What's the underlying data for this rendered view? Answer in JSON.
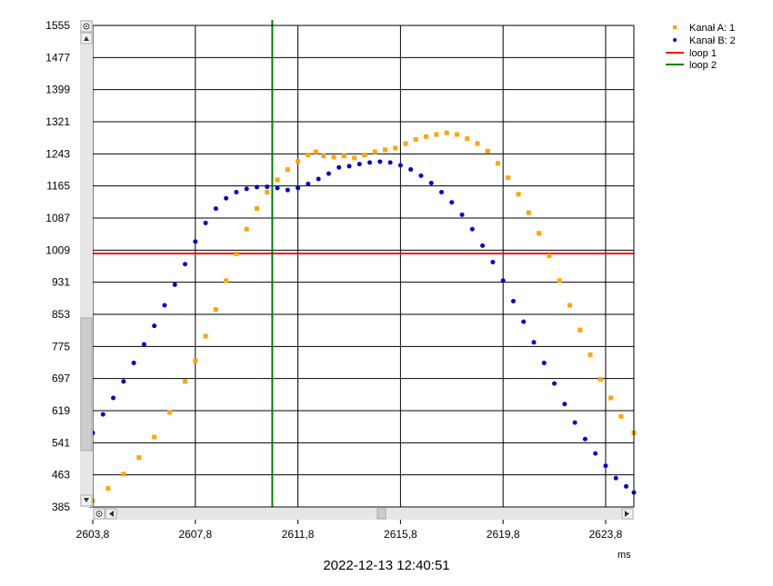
{
  "chart_data": {
    "type": "scatter",
    "xlabel": "ms",
    "timestamp": "2022-12-13 12:40:51",
    "xlim": [
      2603.8,
      2624.9
    ],
    "ylim": [
      385,
      1555
    ],
    "x_ticks": [
      "2603,8",
      "2607,8",
      "2611,8",
      "2615,8",
      "2619,8",
      "2623,8"
    ],
    "x_tick_values": [
      2603.8,
      2607.8,
      2611.8,
      2615.8,
      2619.8,
      2623.8
    ],
    "y_ticks": [
      "385",
      "463",
      "541",
      "619",
      "697",
      "775",
      "853",
      "931",
      "1009",
      "1087",
      "1165",
      "1243",
      "1321",
      "1399",
      "1477",
      "1555"
    ],
    "y_tick_values": [
      385,
      463,
      541,
      619,
      697,
      775,
      853,
      931,
      1009,
      1087,
      1165,
      1243,
      1321,
      1399,
      1477,
      1555
    ],
    "grid": true,
    "legend_position": "top-right",
    "colors": {
      "kanal_a": "#FFA500",
      "kanal_b": "#0000CD",
      "loop_1": "#FF0000",
      "loop_2": "#008000"
    },
    "series": [
      {
        "name": "Kanał A: 1",
        "marker": "square",
        "color": "#FFA500",
        "points": [
          [
            2603.8,
            400
          ],
          [
            2604.4,
            430
          ],
          [
            2605.0,
            465
          ],
          [
            2605.6,
            505
          ],
          [
            2606.2,
            555
          ],
          [
            2606.8,
            615
          ],
          [
            2607.4,
            690
          ],
          [
            2607.8,
            740
          ],
          [
            2608.2,
            800
          ],
          [
            2608.6,
            865
          ],
          [
            2609.0,
            935
          ],
          [
            2609.4,
            1000
          ],
          [
            2609.8,
            1060
          ],
          [
            2610.2,
            1110
          ],
          [
            2610.6,
            1150
          ],
          [
            2611.0,
            1180
          ],
          [
            2611.4,
            1205
          ],
          [
            2611.8,
            1225
          ],
          [
            2612.2,
            1240
          ],
          [
            2612.5,
            1248
          ],
          [
            2612.8,
            1238
          ],
          [
            2613.2,
            1235
          ],
          [
            2613.6,
            1238
          ],
          [
            2614.0,
            1233
          ],
          [
            2614.4,
            1240
          ],
          [
            2614.8,
            1248
          ],
          [
            2615.2,
            1253
          ],
          [
            2615.6,
            1257
          ],
          [
            2616.0,
            1268
          ],
          [
            2616.4,
            1278
          ],
          [
            2616.8,
            1285
          ],
          [
            2617.2,
            1290
          ],
          [
            2617.6,
            1294
          ],
          [
            2618.0,
            1290
          ],
          [
            2618.4,
            1280
          ],
          [
            2618.8,
            1268
          ],
          [
            2619.2,
            1250
          ],
          [
            2619.6,
            1220
          ],
          [
            2620.0,
            1185
          ],
          [
            2620.4,
            1145
          ],
          [
            2620.8,
            1100
          ],
          [
            2621.2,
            1050
          ],
          [
            2621.6,
            995
          ],
          [
            2622.0,
            935
          ],
          [
            2622.4,
            875
          ],
          [
            2622.8,
            815
          ],
          [
            2623.2,
            755
          ],
          [
            2623.6,
            695
          ],
          [
            2624.0,
            650
          ],
          [
            2624.4,
            605
          ],
          [
            2624.9,
            565
          ]
        ]
      },
      {
        "name": "Kanał B: 2",
        "marker": "circle",
        "color": "#0000CD",
        "points": [
          [
            2603.8,
            565
          ],
          [
            2604.2,
            610
          ],
          [
            2604.6,
            650
          ],
          [
            2605.0,
            690
          ],
          [
            2605.4,
            735
          ],
          [
            2605.8,
            780
          ],
          [
            2606.2,
            825
          ],
          [
            2606.6,
            875
          ],
          [
            2607.0,
            925
          ],
          [
            2607.4,
            975
          ],
          [
            2607.8,
            1030
          ],
          [
            2608.2,
            1075
          ],
          [
            2608.6,
            1110
          ],
          [
            2609.0,
            1135
          ],
          [
            2609.4,
            1150
          ],
          [
            2609.8,
            1158
          ],
          [
            2610.2,
            1162
          ],
          [
            2610.6,
            1163
          ],
          [
            2611.0,
            1160
          ],
          [
            2611.4,
            1155
          ],
          [
            2611.8,
            1160
          ],
          [
            2612.2,
            1170
          ],
          [
            2612.6,
            1182
          ],
          [
            2613.0,
            1195
          ],
          [
            2613.4,
            1210
          ],
          [
            2613.8,
            1213
          ],
          [
            2614.2,
            1218
          ],
          [
            2614.6,
            1222
          ],
          [
            2615.0,
            1224
          ],
          [
            2615.4,
            1222
          ],
          [
            2615.8,
            1215
          ],
          [
            2616.2,
            1205
          ],
          [
            2616.6,
            1190
          ],
          [
            2617.0,
            1172
          ],
          [
            2617.4,
            1150
          ],
          [
            2617.8,
            1125
          ],
          [
            2618.2,
            1095
          ],
          [
            2618.6,
            1060
          ],
          [
            2619.0,
            1020
          ],
          [
            2619.4,
            980
          ],
          [
            2619.8,
            935
          ],
          [
            2620.2,
            885
          ],
          [
            2620.6,
            835
          ],
          [
            2621.0,
            785
          ],
          [
            2621.4,
            735
          ],
          [
            2621.8,
            685
          ],
          [
            2622.2,
            635
          ],
          [
            2622.6,
            590
          ],
          [
            2623.0,
            550
          ],
          [
            2623.4,
            515
          ],
          [
            2623.8,
            485
          ],
          [
            2624.2,
            455
          ],
          [
            2624.6,
            435
          ],
          [
            2624.9,
            420
          ]
        ]
      }
    ],
    "lines": [
      {
        "name": "loop 1",
        "orientation": "horizontal",
        "y": 1001,
        "color": "#FF0000"
      },
      {
        "name": "loop 2",
        "orientation": "vertical",
        "x": 2610.8,
        "color": "#008000"
      }
    ]
  }
}
